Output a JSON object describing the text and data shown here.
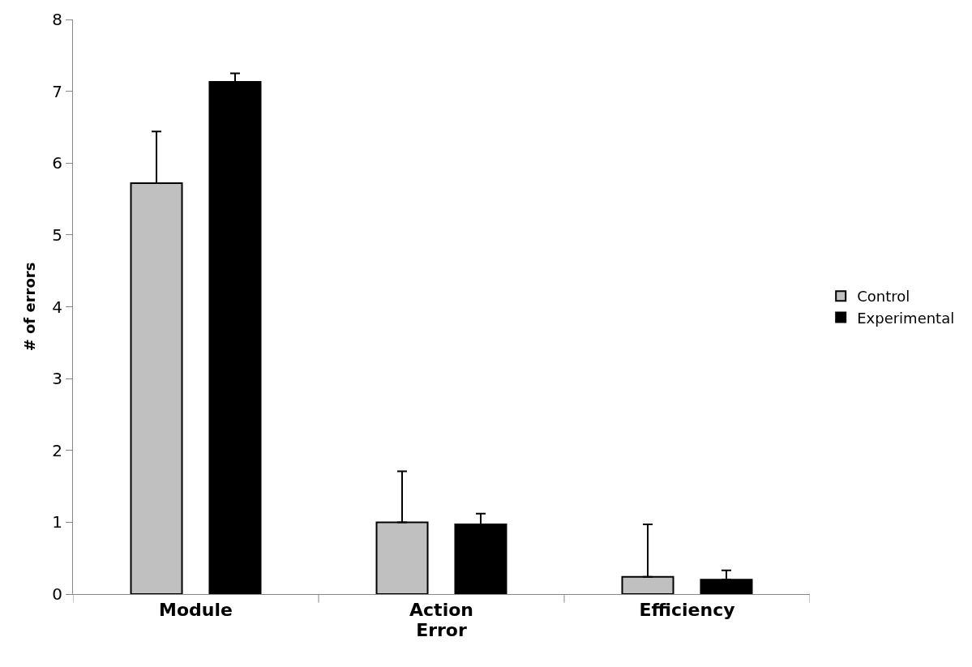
{
  "chart_data": {
    "type": "bar",
    "xlabel": "Error",
    "ylabel": "# of errors",
    "categories": [
      "Module",
      "Action",
      "Efficiency"
    ],
    "series": [
      {
        "name": "Control",
        "color": "#c0c0c0",
        "values": [
          5.72,
          1.0,
          0.24
        ],
        "errors": [
          0.72,
          0.71,
          0.73
        ]
      },
      {
        "name": "Experimental",
        "color": "#000000",
        "values": [
          7.13,
          0.97,
          0.2
        ],
        "errors": [
          0.12,
          0.15,
          0.13
        ]
      }
    ],
    "ylim": [
      0,
      8
    ],
    "yticks": [
      0,
      1,
      2,
      3,
      4,
      5,
      6,
      7,
      8
    ],
    "legend": "right"
  }
}
